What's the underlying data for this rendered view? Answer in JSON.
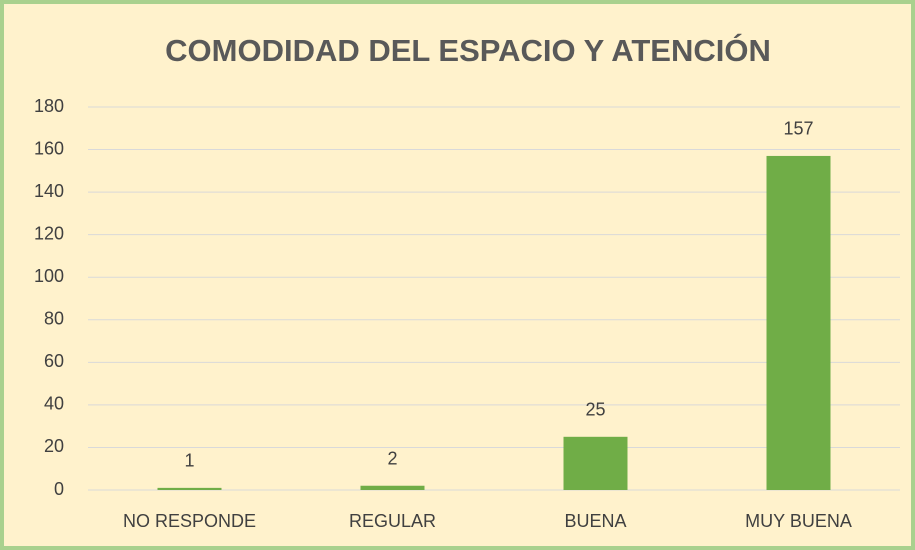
{
  "chart_data": {
    "type": "bar",
    "title": "COMODIDAD DEL ESPACIO Y ATENCIÓN",
    "categories": [
      "NO RESPONDE",
      "REGULAR",
      "BUENA",
      "MUY BUENA"
    ],
    "values": [
      1,
      2,
      25,
      157
    ],
    "color": "#70ad47",
    "ylim": [
      0,
      180
    ],
    "yticks": [
      0,
      20,
      40,
      60,
      80,
      100,
      120,
      140,
      160,
      180
    ],
    "grid": true,
    "data_labels": true
  }
}
